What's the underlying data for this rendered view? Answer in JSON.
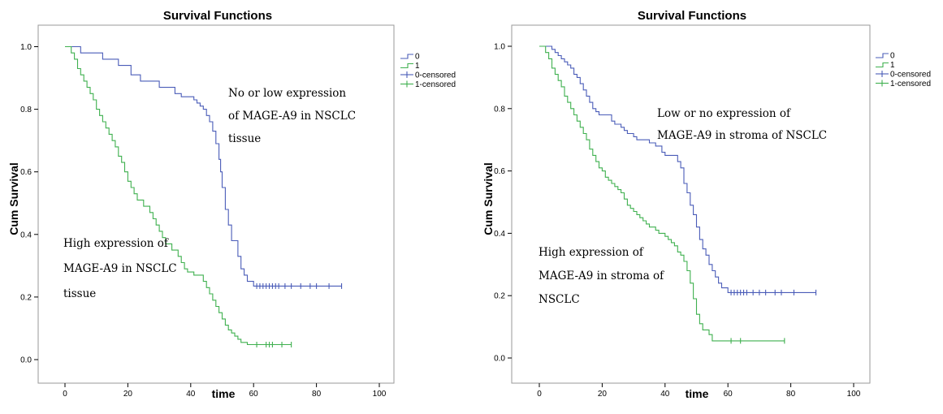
{
  "chart_data": [
    {
      "type": "line",
      "title": "Survival Functions",
      "xlabel": "time",
      "ylabel": "Cum Survival",
      "xlim": [
        0,
        100
      ],
      "ylim": [
        0,
        1.0
      ],
      "xticks": [
        "0",
        "20",
        "40",
        "60",
        "80",
        "100"
      ],
      "yticks": [
        "0.0",
        "0.2",
        "0.4",
        "0.6",
        "0.8",
        "1.0"
      ],
      "grid": false,
      "legend_position": "right",
      "legend": [
        "0",
        "1",
        "0-censored",
        "1-censored"
      ],
      "annotations": [
        {
          "lines": [
            "No or low expression",
            "of MAGE-A9 in NSCLC",
            "tissue"
          ],
          "x": 52,
          "y": 0.85
        },
        {
          "lines": [
            "High expression of",
            "MAGE-A9 in NSCLC",
            "tissue"
          ],
          "x": 0,
          "y": 0.37
        }
      ],
      "series": [
        {
          "name": "0",
          "color": "#4a5cb8",
          "points": [
            [
              0,
              1.0
            ],
            [
              4,
              1.0
            ],
            [
              5,
              0.98
            ],
            [
              10,
              0.98
            ],
            [
              12,
              0.96
            ],
            [
              15,
              0.96
            ],
            [
              17,
              0.94
            ],
            [
              20,
              0.94
            ],
            [
              21,
              0.91
            ],
            [
              24,
              0.89
            ],
            [
              28,
              0.89
            ],
            [
              30,
              0.87
            ],
            [
              33,
              0.87
            ],
            [
              35,
              0.85
            ],
            [
              37,
              0.84
            ],
            [
              39,
              0.84
            ],
            [
              41,
              0.83
            ],
            [
              42,
              0.82
            ],
            [
              43,
              0.81
            ],
            [
              44,
              0.8
            ],
            [
              45,
              0.78
            ],
            [
              46,
              0.76
            ],
            [
              47,
              0.73
            ],
            [
              48,
              0.69
            ],
            [
              49,
              0.64
            ],
            [
              49.5,
              0.6
            ],
            [
              50,
              0.55
            ],
            [
              51,
              0.48
            ],
            [
              52,
              0.43
            ],
            [
              53,
              0.38
            ],
            [
              55,
              0.33
            ],
            [
              56,
              0.29
            ],
            [
              57,
              0.27
            ],
            [
              58,
              0.25
            ],
            [
              60,
              0.235
            ],
            [
              88,
              0.235
            ]
          ],
          "censored": [
            61,
            62,
            63,
            64,
            65,
            66,
            67,
            68,
            70,
            72,
            75,
            78,
            80,
            84,
            88
          ]
        },
        {
          "name": "1",
          "color": "#3fb04f",
          "points": [
            [
              0,
              1.0
            ],
            [
              2,
              0.98
            ],
            [
              3,
              0.96
            ],
            [
              4,
              0.93
            ],
            [
              5,
              0.91
            ],
            [
              6,
              0.89
            ],
            [
              7,
              0.87
            ],
            [
              8,
              0.85
            ],
            [
              9,
              0.83
            ],
            [
              10,
              0.8
            ],
            [
              11,
              0.78
            ],
            [
              12,
              0.76
            ],
            [
              13,
              0.74
            ],
            [
              14,
              0.72
            ],
            [
              15,
              0.7
            ],
            [
              16,
              0.68
            ],
            [
              17,
              0.65
            ],
            [
              18,
              0.63
            ],
            [
              19,
              0.6
            ],
            [
              20,
              0.57
            ],
            [
              21,
              0.55
            ],
            [
              22,
              0.53
            ],
            [
              23,
              0.51
            ],
            [
              25,
              0.49
            ],
            [
              27,
              0.47
            ],
            [
              28,
              0.45
            ],
            [
              29,
              0.43
            ],
            [
              30,
              0.41
            ],
            [
              31,
              0.39
            ],
            [
              32,
              0.37
            ],
            [
              34,
              0.35
            ],
            [
              36,
              0.33
            ],
            [
              37,
              0.31
            ],
            [
              38,
              0.29
            ],
            [
              39,
              0.28
            ],
            [
              41,
              0.27
            ],
            [
              43,
              0.27
            ],
            [
              44,
              0.25
            ],
            [
              45,
              0.23
            ],
            [
              46,
              0.21
            ],
            [
              47,
              0.19
            ],
            [
              48,
              0.17
            ],
            [
              49,
              0.15
            ],
            [
              50,
              0.13
            ],
            [
              51,
              0.11
            ],
            [
              52,
              0.095
            ],
            [
              53,
              0.085
            ],
            [
              54,
              0.075
            ],
            [
              55,
              0.065
            ],
            [
              56,
              0.055
            ],
            [
              58,
              0.048
            ],
            [
              72,
              0.048
            ]
          ],
          "censored": [
            61,
            64,
            65,
            66,
            69,
            72
          ]
        }
      ]
    },
    {
      "type": "line",
      "title": "Survival Functions",
      "xlabel": "time",
      "ylabel": "Cum Survival",
      "xlim": [
        0,
        100
      ],
      "ylim": [
        0,
        1.0
      ],
      "xticks": [
        "0",
        "20",
        "40",
        "60",
        "80",
        "100"
      ],
      "yticks": [
        "0.0",
        "0.2",
        "0.4",
        "0.6",
        "0.8",
        "1.0"
      ],
      "grid": false,
      "legend_position": "right",
      "legend": [
        "0",
        "1",
        "0-censored",
        "1-censored"
      ],
      "annotations": [
        {
          "lines": [
            "Low or no expression of",
            "MAGE-A9 in stroma of NSCLC"
          ],
          "x": 38,
          "y": 0.79
        },
        {
          "lines": [
            "High expression of",
            "MAGE-A9 in stroma of",
            "NSCLC"
          ],
          "x": 0,
          "y": 0.33
        }
      ],
      "series": [
        {
          "name": "0",
          "color": "#4a5cb8",
          "points": [
            [
              0,
              1.0
            ],
            [
              3,
              1.0
            ],
            [
              4,
              0.99
            ],
            [
              5,
              0.98
            ],
            [
              6,
              0.97
            ],
            [
              7,
              0.96
            ],
            [
              8,
              0.95
            ],
            [
              9,
              0.94
            ],
            [
              10,
              0.93
            ],
            [
              11,
              0.91
            ],
            [
              12,
              0.9
            ],
            [
              13,
              0.88
            ],
            [
              14,
              0.86
            ],
            [
              15,
              0.84
            ],
            [
              16,
              0.82
            ],
            [
              17,
              0.8
            ],
            [
              18,
              0.79
            ],
            [
              19,
              0.78
            ],
            [
              21,
              0.78
            ],
            [
              23,
              0.76
            ],
            [
              24,
              0.75
            ],
            [
              26,
              0.74
            ],
            [
              27,
              0.73
            ],
            [
              28,
              0.72
            ],
            [
              30,
              0.71
            ],
            [
              31,
              0.7
            ],
            [
              33,
              0.7
            ],
            [
              35,
              0.69
            ],
            [
              37,
              0.68
            ],
            [
              39,
              0.66
            ],
            [
              40,
              0.65
            ],
            [
              43,
              0.65
            ],
            [
              44,
              0.63
            ],
            [
              45,
              0.61
            ],
            [
              46,
              0.56
            ],
            [
              47,
              0.53
            ],
            [
              48,
              0.49
            ],
            [
              49,
              0.46
            ],
            [
              50,
              0.42
            ],
            [
              51,
              0.38
            ],
            [
              52,
              0.35
            ],
            [
              53,
              0.33
            ],
            [
              54,
              0.3
            ],
            [
              55,
              0.28
            ],
            [
              56,
              0.26
            ],
            [
              57,
              0.24
            ],
            [
              58,
              0.225
            ],
            [
              60,
              0.21
            ],
            [
              88,
              0.21
            ]
          ],
          "censored": [
            61,
            62,
            63,
            64,
            65,
            66,
            68,
            70,
            72,
            75,
            77,
            81,
            88
          ]
        },
        {
          "name": "1",
          "color": "#3fb04f",
          "points": [
            [
              0,
              1.0
            ],
            [
              2,
              0.98
            ],
            [
              3,
              0.96
            ],
            [
              4,
              0.93
            ],
            [
              5,
              0.91
            ],
            [
              6,
              0.89
            ],
            [
              7,
              0.87
            ],
            [
              8,
              0.84
            ],
            [
              9,
              0.82
            ],
            [
              10,
              0.8
            ],
            [
              11,
              0.78
            ],
            [
              12,
              0.76
            ],
            [
              13,
              0.74
            ],
            [
              14,
              0.72
            ],
            [
              15,
              0.7
            ],
            [
              16,
              0.67
            ],
            [
              17,
              0.65
            ],
            [
              18,
              0.63
            ],
            [
              19,
              0.61
            ],
            [
              20,
              0.6
            ],
            [
              21,
              0.58
            ],
            [
              22,
              0.57
            ],
            [
              23,
              0.56
            ],
            [
              24,
              0.55
            ],
            [
              25,
              0.54
            ],
            [
              26,
              0.53
            ],
            [
              27,
              0.51
            ],
            [
              28,
              0.49
            ],
            [
              29,
              0.48
            ],
            [
              30,
              0.47
            ],
            [
              31,
              0.46
            ],
            [
              32,
              0.45
            ],
            [
              33,
              0.44
            ],
            [
              34,
              0.43
            ],
            [
              35,
              0.42
            ],
            [
              37,
              0.41
            ],
            [
              38,
              0.4
            ],
            [
              40,
              0.39
            ],
            [
              41,
              0.38
            ],
            [
              42,
              0.37
            ],
            [
              43,
              0.36
            ],
            [
              44,
              0.34
            ],
            [
              45,
              0.33
            ],
            [
              46,
              0.31
            ],
            [
              47,
              0.28
            ],
            [
              48,
              0.24
            ],
            [
              49,
              0.19
            ],
            [
              50,
              0.14
            ],
            [
              51,
              0.11
            ],
            [
              52,
              0.09
            ],
            [
              54,
              0.075
            ],
            [
              55,
              0.055
            ],
            [
              62,
              0.055
            ],
            [
              78,
              0.055
            ]
          ],
          "censored": [
            61,
            64,
            78
          ]
        }
      ]
    }
  ]
}
